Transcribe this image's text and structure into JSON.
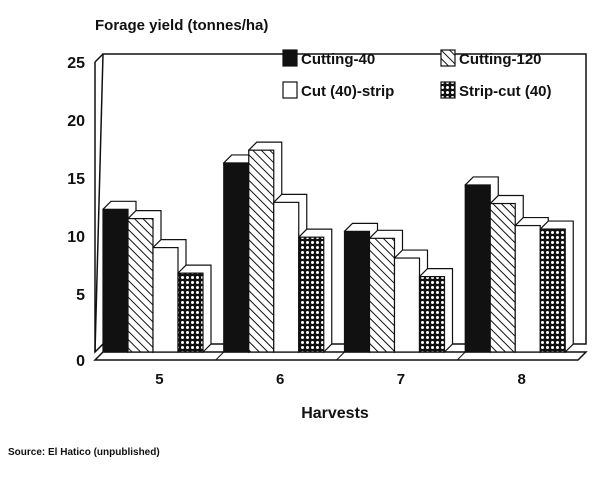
{
  "chart_data": {
    "type": "bar",
    "title": "Forage yield (tonnes/ha)",
    "xlabel": "Harvests",
    "ylabel": "Forage yield (tonnes/ha)",
    "ylim": [
      0,
      25
    ],
    "yticks": [
      "0",
      "5",
      "10",
      "15",
      "20",
      "25"
    ],
    "categories": [
      "5",
      "6",
      "7",
      "8"
    ],
    "legend_placement": "top-right",
    "grid": false,
    "series": [
      {
        "name": "Cutting-40",
        "fill": "solid-black",
        "values": [
          12.3,
          16.3,
          10.4,
          14.4
        ]
      },
      {
        "name": "Cutting-120",
        "fill": "diagonal-hatch",
        "values": [
          11.5,
          17.4,
          9.8,
          12.8
        ]
      },
      {
        "name": "Cut (40)-strip",
        "fill": "white",
        "values": [
          9.0,
          12.9,
          8.1,
          10.9
        ]
      },
      {
        "name": "Strip-cut (40)",
        "fill": "crosshatch",
        "values": [
          6.8,
          9.9,
          6.5,
          10.6
        ]
      }
    ]
  },
  "source": "Source: El Hatico (unpublished)"
}
